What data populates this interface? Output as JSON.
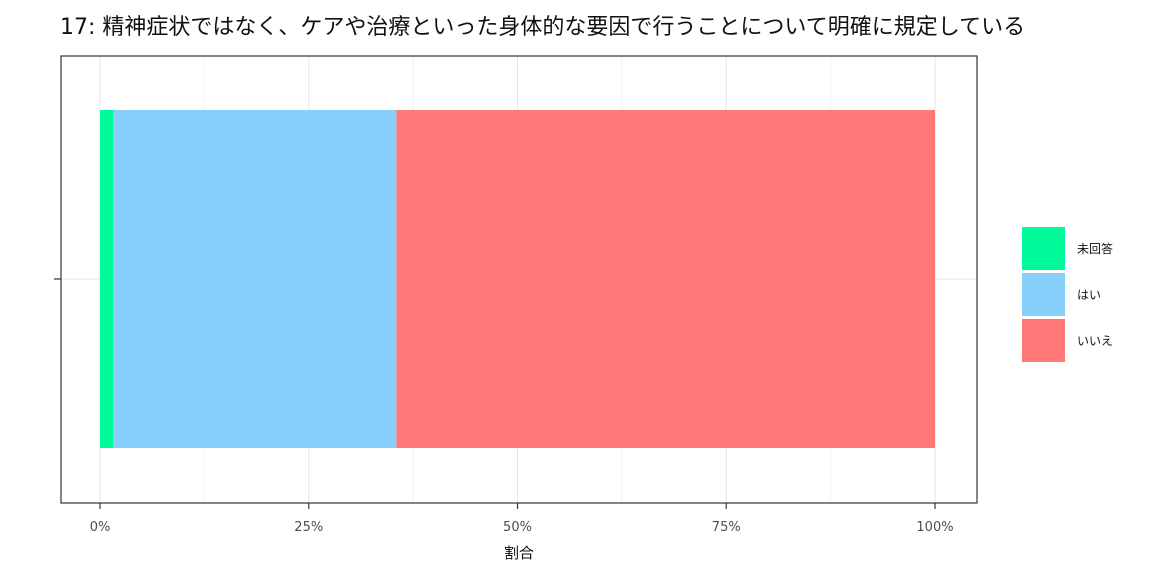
{
  "chart_data": {
    "type": "bar",
    "orientation": "horizontal",
    "stacked": true,
    "title": "17: 精神症状ではなく、ケアや治療といった身体的な要因で行うことについて明確に規定している",
    "xlabel": "割合",
    "ylabel": "",
    "xlim": [
      0,
      1
    ],
    "x_ticks": [
      "0%",
      "25%",
      "50%",
      "75%",
      "100%"
    ],
    "grid": true,
    "legend_position": "right",
    "series": [
      {
        "name": "未回答",
        "value": 0.016,
        "color": "#00FA9A"
      },
      {
        "name": "はい",
        "value": 0.339,
        "color": "#87CEFA"
      },
      {
        "name": "いいえ",
        "value": 0.645,
        "color": "#FF7777"
      }
    ]
  }
}
